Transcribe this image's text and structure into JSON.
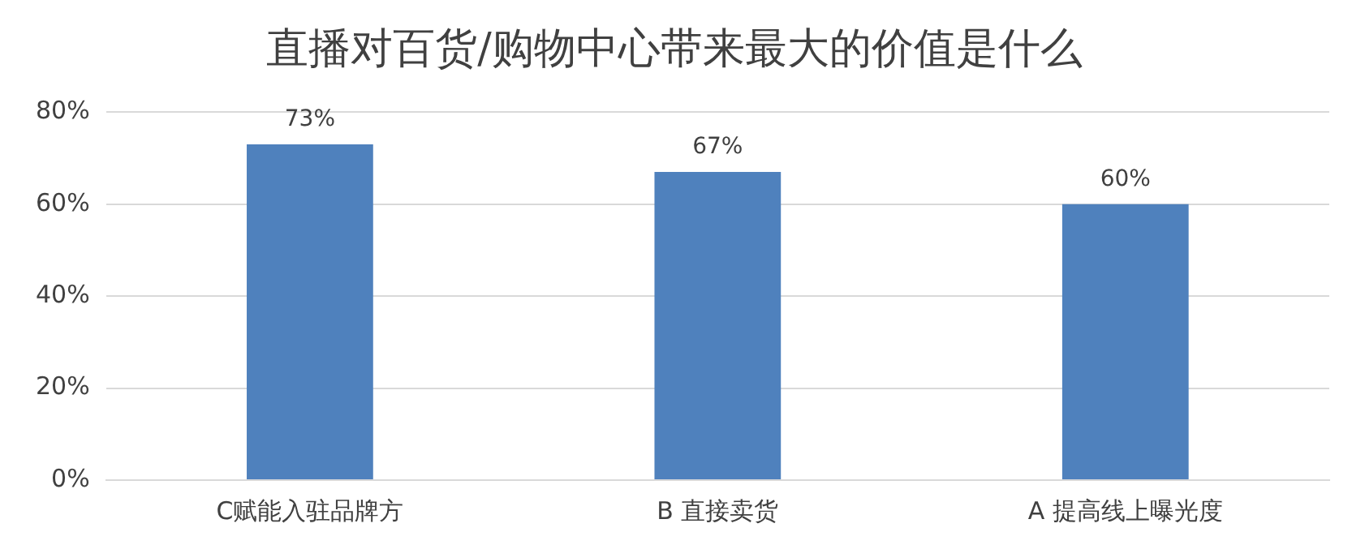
{
  "chart_data": {
    "type": "bar",
    "title": "直播对百货/购物中心带来最大的价值是什么",
    "categories": [
      "C赋能入驻品牌方",
      "B 直接卖货",
      "A 提高线上曝光度"
    ],
    "values": [
      73,
      67,
      60
    ],
    "color": "#4f81bd",
    "value_labels": [
      "73%",
      "67%",
      "60%"
    ],
    "ylim": [
      0,
      80
    ],
    "yticks": [
      {
        "value": 0,
        "label": "0%"
      },
      {
        "value": 20,
        "label": "20%"
      },
      {
        "value": 40,
        "label": "40%"
      },
      {
        "value": 60,
        "label": "60%"
      },
      {
        "value": 80,
        "label": "80%"
      }
    ],
    "grid": "y",
    "legend": false
  }
}
